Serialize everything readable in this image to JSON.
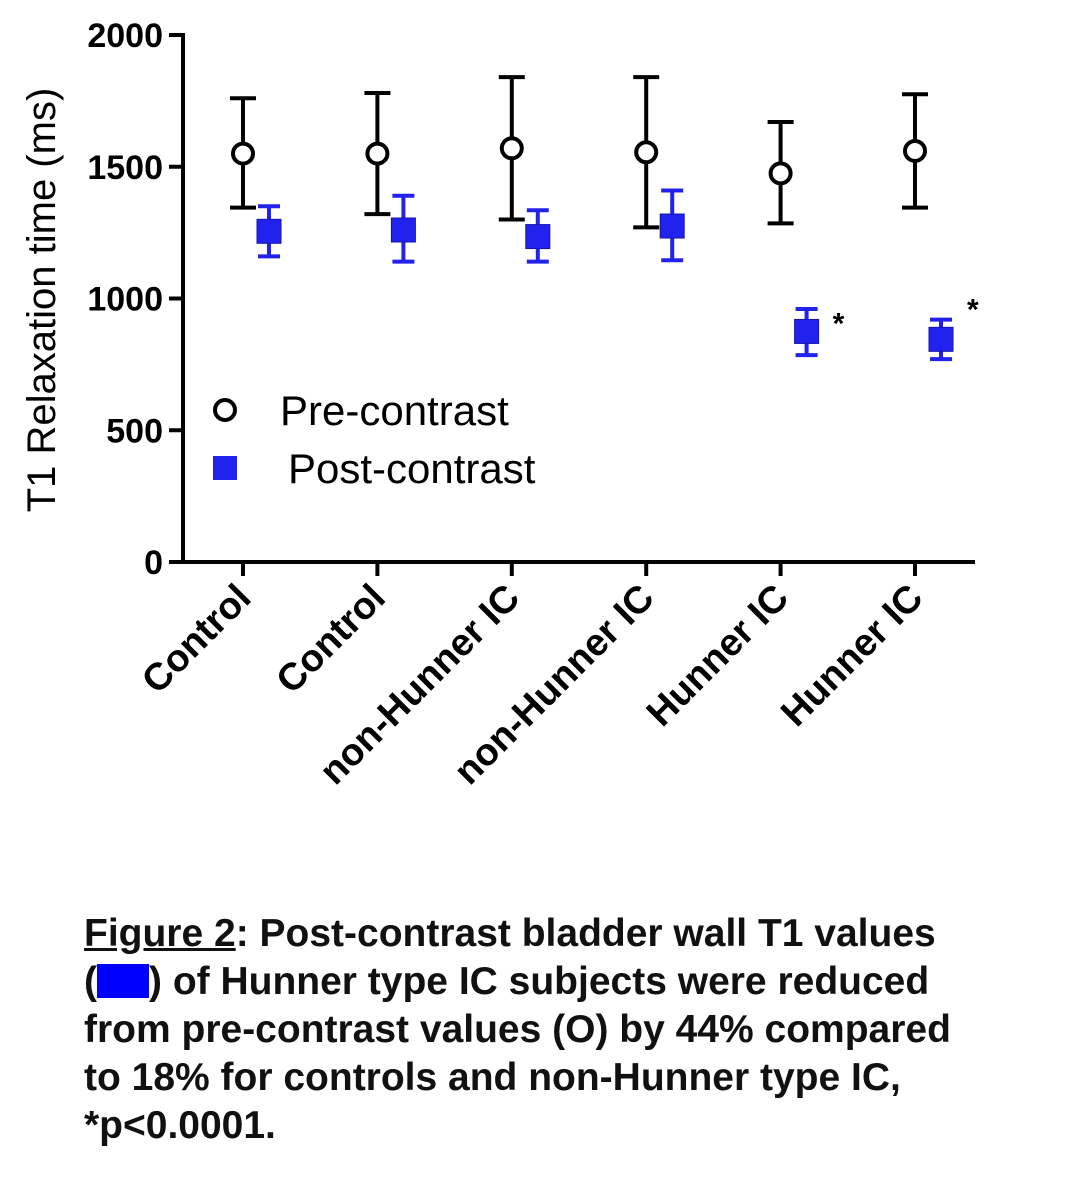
{
  "chart_data": {
    "type": "scatter",
    "ylabel": "T1 Relaxation time (ms)",
    "ylim": [
      0,
      2000
    ],
    "yticks": [
      0,
      500,
      1000,
      1500,
      2000
    ],
    "categories": [
      "Control",
      "Control",
      "non-Hunner IC",
      "non-Hunner IC",
      "Hunner IC",
      "Hunner IC"
    ],
    "legend_position": "left-middle",
    "series": [
      {
        "name": "Pre-contrast",
        "marker": "open-circle",
        "color": "#000000",
        "values": [
          1550,
          1550,
          1570,
          1555,
          1475,
          1560
        ],
        "err_low": [
          1345,
          1320,
          1300,
          1270,
          1285,
          1345
        ],
        "err_high": [
          1760,
          1780,
          1840,
          1840,
          1670,
          1775
        ]
      },
      {
        "name": "Post-contrast",
        "marker": "filled-square",
        "color": "#2222ee",
        "values": [
          1255,
          1260,
          1235,
          1275,
          875,
          845
        ],
        "err_low": [
          1160,
          1140,
          1140,
          1145,
          785,
          770
        ],
        "err_high": [
          1350,
          1390,
          1335,
          1410,
          960,
          920
        ],
        "annotations": [
          "",
          "",
          "",
          "",
          "*",
          "*"
        ]
      }
    ]
  },
  "caption": {
    "figure_ref": "Figure 2",
    "line1_rest": ":  Post-contrast bladder wall  T1 values",
    "line2_open": "(",
    "line2_rest": ") of Hunner type IC subjects were reduced",
    "line3": "from pre-contrast values (O) by 44% compared",
    "line4": "to 18% for controls and non-Hunner type IC,",
    "line5": "*p<0.0001."
  }
}
